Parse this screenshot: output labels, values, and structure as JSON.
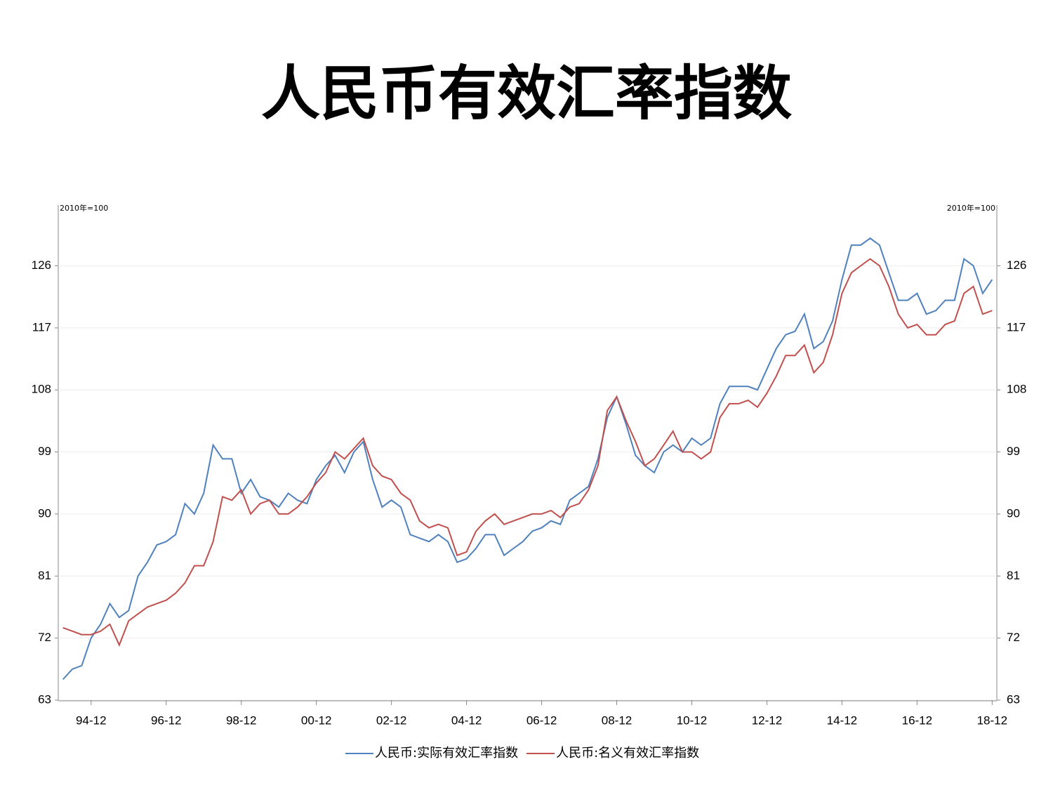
{
  "chart_data": {
    "type": "line",
    "title": "人民币有效汇率指数",
    "unit_left": "2010年=100",
    "unit_right": "2010年=100",
    "x": [
      "94-03",
      "94-06",
      "94-09",
      "94-12",
      "95-03",
      "95-06",
      "95-09",
      "95-12",
      "96-03",
      "96-06",
      "96-09",
      "96-12",
      "97-03",
      "97-06",
      "97-09",
      "97-12",
      "98-03",
      "98-06",
      "98-09",
      "98-12",
      "99-03",
      "99-06",
      "99-09",
      "99-12",
      "00-03",
      "00-06",
      "00-09",
      "00-12",
      "01-03",
      "01-06",
      "01-09",
      "01-12",
      "02-03",
      "02-06",
      "02-09",
      "02-12",
      "03-03",
      "03-06",
      "03-09",
      "03-12",
      "04-03",
      "04-06",
      "04-09",
      "04-12",
      "05-03",
      "05-06",
      "05-09",
      "05-12",
      "06-03",
      "06-06",
      "06-09",
      "06-12",
      "07-03",
      "07-06",
      "07-09",
      "07-12",
      "08-03",
      "08-06",
      "08-09",
      "08-12",
      "09-03",
      "09-06",
      "09-09",
      "09-12",
      "10-03",
      "10-06",
      "10-09",
      "10-12",
      "11-03",
      "11-06",
      "11-09",
      "11-12",
      "12-03",
      "12-06",
      "12-09",
      "12-12",
      "13-03",
      "13-06",
      "13-09",
      "13-12",
      "14-03",
      "14-06",
      "14-09",
      "14-12",
      "15-03",
      "15-06",
      "15-09",
      "15-12",
      "16-03",
      "16-06",
      "16-09",
      "16-12",
      "17-03",
      "17-06",
      "17-09",
      "17-12",
      "18-03",
      "18-06",
      "18-09",
      "18-12"
    ],
    "series": [
      {
        "name": "人民币:实际有效汇率指数",
        "color": "#4f81bd",
        "values": [
          66,
          67.5,
          68,
          72,
          74,
          77,
          75,
          76,
          81,
          83,
          85.5,
          86,
          87,
          91.5,
          90,
          93,
          100,
          98,
          98,
          93,
          95,
          92.5,
          92,
          91,
          93,
          92,
          91.5,
          95,
          97,
          98.5,
          96,
          99,
          100.5,
          95,
          91,
          92,
          91,
          87,
          86.5,
          86,
          87,
          86,
          83,
          83.5,
          85,
          87,
          87,
          84,
          85,
          86,
          87.5,
          88,
          89,
          88.5,
          92,
          93,
          94,
          98,
          104,
          107,
          103,
          98.5,
          97,
          96,
          99,
          100,
          99,
          101,
          100,
          101,
          106,
          108.5,
          108.5,
          108.5,
          108,
          111,
          114,
          116,
          116.5,
          119,
          114,
          115,
          118,
          124,
          129,
          129,
          130,
          129,
          125,
          121,
          121,
          122,
          119,
          119.5,
          121,
          121,
          127,
          126,
          122,
          124
        ]
      },
      {
        "name": "人民币:名义有效汇率指数",
        "color": "#c0504d",
        "values": [
          73.5,
          73,
          72.5,
          72.5,
          73,
          74,
          71,
          74.5,
          75.5,
          76.5,
          77,
          77.5,
          78.5,
          80,
          82.5,
          82.5,
          86,
          92.5,
          92,
          93.5,
          90,
          91.5,
          92,
          90,
          90,
          91,
          92.5,
          94.5,
          96,
          99,
          98,
          99.5,
          101,
          97,
          95.5,
          95,
          93,
          92,
          89,
          88,
          88.5,
          88,
          84,
          84.5,
          87.5,
          89,
          90,
          88.5,
          89,
          89.5,
          90,
          90,
          90.5,
          89.5,
          91,
          91.5,
          93.5,
          97,
          105,
          107,
          103.5,
          100.5,
          97,
          98,
          100,
          102,
          99,
          99,
          98,
          99,
          104,
          106,
          106,
          106.5,
          105.5,
          107.5,
          110,
          113,
          113,
          114.5,
          110.5,
          112,
          116,
          122,
          125,
          126,
          127,
          126,
          123,
          119,
          117,
          117.5,
          116,
          116,
          117.5,
          118,
          122,
          123,
          119,
          119.5
        ]
      }
    ],
    "xticks": [
      "94-12",
      "96-12",
      "98-12",
      "00-12",
      "02-12",
      "04-12",
      "06-12",
      "08-12",
      "10-12",
      "12-12",
      "14-12",
      "16-12",
      "18-12"
    ],
    "ylim": [
      63,
      134
    ],
    "yticks": [
      63,
      72,
      81,
      90,
      99,
      108,
      117,
      126
    ],
    "grid": true
  }
}
